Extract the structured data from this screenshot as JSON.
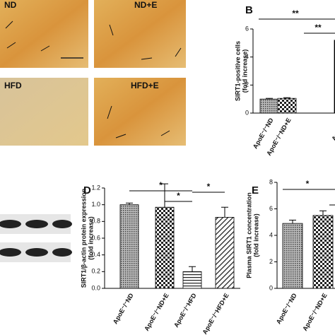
{
  "micrographs": {
    "labels": [
      "ND",
      "ND+E",
      "HFD",
      "HFD+E"
    ]
  },
  "chart_data": [
    {
      "type": "bar",
      "panel": "B",
      "ylabel": [
        "SIRT1-positive cells",
        "(fold increase)"
      ],
      "categories": [
        "ApoE⁻/⁻ND",
        "ApoE⁻/⁻ND+E",
        "ApoE⁻/⁻"
      ],
      "values": [
        1.0,
        1.05,
        5.2
      ],
      "errors": [
        0.05,
        0.05,
        0.1
      ],
      "fills": [
        "dots",
        "checker",
        "black"
      ],
      "ylim": [
        0,
        6
      ],
      "yticks": [
        0,
        2,
        4,
        6
      ],
      "annotations": [
        "**",
        "**"
      ]
    },
    {
      "type": "bar",
      "panel": "D",
      "ylabel": [
        "SIRT1/β-actin protein expression",
        "(fold increase)"
      ],
      "categories": [
        "ApoE⁻/⁻ND",
        "ApoE⁻/⁻ND+E",
        "ApoE⁻/⁻HFD",
        "ApoE⁻/⁻HFD+E"
      ],
      "values": [
        1.0,
        0.97,
        0.2,
        0.85
      ],
      "errors": [
        0.02,
        0.28,
        0.06,
        0.12
      ],
      "fills": [
        "dots",
        "checker",
        "hlines",
        "diag"
      ],
      "ylim": [
        0,
        1.2
      ],
      "yticks": [
        {
          "value": 0,
          "label": "0.0"
        },
        {
          "value": 0.2,
          "label": "0.2"
        },
        {
          "value": 0.4,
          "label": "0.4"
        },
        {
          "value": 0.6,
          "label": "0.6"
        },
        {
          "value": 0.8,
          "label": "0.8"
        },
        {
          "value": 1,
          "label": "1.0"
        },
        {
          "value": 1.2,
          "label": "1.2"
        }
      ],
      "annotations": [
        "*",
        "*",
        "*"
      ]
    },
    {
      "type": "bar",
      "panel": "E",
      "ylabel": [
        "Plasma SIRT1 concentration",
        "(fold increase)"
      ],
      "categories": [
        "ApoE⁻/⁻ND",
        "ApoE⁻/⁻ND+E"
      ],
      "values": [
        4.9,
        5.5
      ],
      "errors": [
        0.25,
        0.35
      ],
      "fills": [
        "dots",
        "checker"
      ],
      "ylim": [
        0,
        8
      ],
      "yticks": [
        0,
        2,
        4,
        6,
        8
      ],
      "annotations": [
        "*"
      ]
    }
  ]
}
